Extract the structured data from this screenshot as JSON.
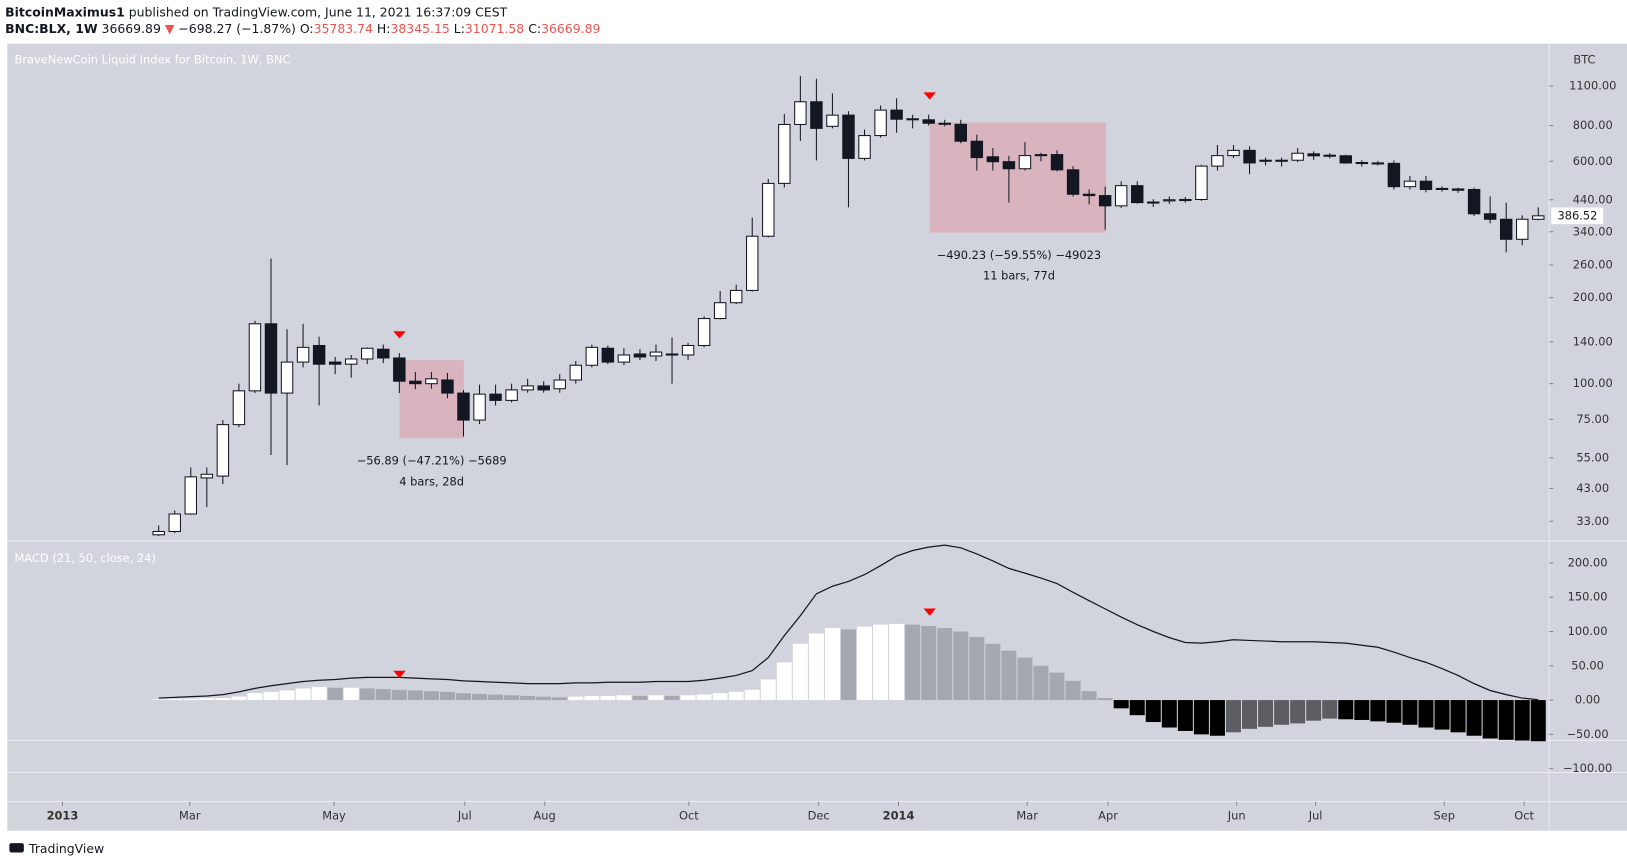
{
  "header": {
    "publisher": "BitcoinMaximus1",
    "published": "published on TradingView.com, June 11, 2021 16:37:09 CEST",
    "symbol": "BNC:BLX, 1W",
    "last": "36669.89",
    "arrow": "▼",
    "change": "−698.27 (−1.87%)",
    "ohlc": [
      {
        "label": "O:",
        "value": "35783.74"
      },
      {
        "label": "H:",
        "value": "38345.15"
      },
      {
        "label": "L:",
        "value": "31071.58"
      },
      {
        "label": "C:",
        "value": "36669.89"
      }
    ]
  },
  "footer": {
    "brand": "TradingView"
  },
  "chart_data": [
    {
      "type": "candlestick",
      "title": "BraveNewCoin Liquid Index for Bitcoin, 1W, BNC",
      "unit": "BTC",
      "categories": [
        null,
        null,
        null,
        null,
        null,
        null,
        null,
        null,
        null,
        null,
        null,
        null,
        null,
        null,
        null,
        null,
        null,
        null,
        null,
        null,
        null,
        null,
        null,
        null,
        null,
        null,
        null,
        null,
        null,
        null,
        null,
        null,
        null,
        null,
        null,
        null,
        null,
        null,
        null,
        null,
        null,
        null,
        null,
        null,
        null,
        null,
        null,
        null,
        null,
        null,
        null,
        null,
        null,
        null,
        null,
        null,
        null,
        null,
        null,
        null,
        null,
        null,
        null,
        null,
        null,
        null,
        null,
        null,
        null,
        null,
        null,
        null,
        null,
        null,
        null,
        null,
        null,
        null,
        null,
        null,
        null,
        null,
        null,
        null,
        null,
        null,
        null
      ],
      "open": [
        29.6,
        30.4,
        35.0,
        46.8,
        47.5,
        71.9,
        94.4,
        162,
        92.7,
        119,
        136,
        119,
        117,
        122,
        132,
        123,
        102,
        100,
        103,
        92.7,
        74.6,
        91.9,
        87.4,
        95.1,
        98.2,
        96.0,
        103,
        116,
        133,
        119,
        127,
        125,
        127,
        126,
        136,
        169,
        192,
        212,
        328,
        502,
        807,
        969,
        795,
        870,
        614,
        738,
        906,
        845,
        838,
        815,
        808,
        705,
        622,
        598,
        565,
        628,
        633,
        560,
        460,
        455,
        419,
        493,
        430,
        436,
        438,
        441,
        577,
        628,
        655,
        602,
        600,
        605,
        637,
        628,
        627,
        594,
        592,
        590,
        489,
        511,
        480,
        480,
        478,
        393,
        376,
        320,
        376
      ],
      "high": [
        31.9,
        36.0,
        50.9,
        50.9,
        74.6,
        100,
        166,
        274,
        155,
        162,
        146,
        124,
        126,
        134,
        137,
        128,
        110,
        110,
        109,
        95.0,
        99.2,
        99.2,
        100,
        104,
        102,
        108,
        120,
        137,
        136,
        133,
        132,
        137,
        145,
        139,
        172,
        211,
        222,
        381,
        520,
        878,
        1194,
        1167,
        1037,
        898,
        775,
        940,
        996,
        873,
        873,
        838,
        838,
        744,
        667,
        627,
        700,
        642,
        655,
        577,
        478,
        489,
        511,
        511,
        442,
        452,
        450,
        583,
        684,
        684,
        677,
        618,
        618,
        667,
        650,
        640,
        633,
        605,
        602,
        604,
        533,
        533,
        490,
        485,
        485,
        452,
        430,
        388,
        414
      ],
      "low": [
        29.3,
        30.0,
        34.8,
        37.0,
        44.5,
        70.4,
        92.7,
        56.3,
        51.9,
        114,
        83.9,
        108,
        105,
        117,
        118,
        92.7,
        95.7,
        96,
        88.9,
        65.3,
        72.2,
        83.9,
        86.0,
        93.0,
        93.0,
        93.0,
        100,
        114,
        117,
        116,
        121,
        120,
        100,
        121,
        134,
        168,
        190,
        210,
        325,
        486,
        707,
        604,
        782,
        414,
        604,
        726,
        755,
        782,
        800,
        795,
        694,
        557,
        557,
        430,
        557,
        600,
        553,
        452,
        424,
        346,
        412,
        427,
        415,
        425,
        430,
        436,
        557,
        616,
        541,
        580,
        575,
        596,
        607,
        615,
        588,
        575,
        580,
        478,
        478,
        467,
        470,
        465,
        386,
        364,
        288,
        305,
        373
      ],
      "close": [
        30.4,
        35.0,
        47.2,
        48.2,
        71.9,
        94.4,
        162,
        92.7,
        119,
        134,
        117,
        117,
        122,
        133,
        123,
        102,
        100,
        104,
        92.7,
        74.6,
        91.9,
        87.4,
        95.1,
        98.2,
        95.1,
        103,
        116,
        134,
        119,
        126,
        124,
        129,
        126,
        136,
        169,
        192,
        212,
        328,
        502,
        807,
        969,
        782,
        870,
        614,
        738,
        906,
        842,
        838,
        815,
        808,
        705,
        618,
        598,
        565,
        628,
        633,
        560,
        460,
        455,
        419,
        493,
        430,
        432,
        440,
        441,
        577,
        628,
        655,
        592,
        605,
        605,
        640,
        627,
        630,
        592,
        590,
        590,
        489,
        511,
        478,
        482,
        475,
        393,
        376,
        320,
        376,
        386.52
      ],
      "up_color": "#ffffff",
      "down_color": "#131722",
      "log_scale": true,
      "ylim": [
        28.4,
        1548
      ],
      "yticks": [
        {
          "value": 1100,
          "label": "1100.00"
        },
        {
          "value": 800,
          "label": "800.00"
        },
        {
          "value": 600,
          "label": "600.00"
        },
        {
          "value": 440,
          "label": "440.00"
        },
        {
          "value": 340,
          "label": "340.00"
        },
        {
          "value": 260,
          "label": "260.00"
        },
        {
          "value": 200,
          "label": "200.00"
        },
        {
          "value": 140,
          "label": "140.00"
        },
        {
          "value": 100,
          "label": "100.00"
        },
        {
          "value": 75,
          "label": "75.00"
        },
        {
          "value": 55,
          "label": "55.00"
        },
        {
          "value": 43,
          "label": "43.00"
        },
        {
          "value": 33,
          "label": "33.00"
        }
      ],
      "xlim": [
        -9.44,
        86.68
      ],
      "xticks": [
        {
          "value": -6.0,
          "label": "2013"
        },
        {
          "value": 1.94,
          "label": "Mar"
        },
        {
          "value": 10.93,
          "label": "May"
        },
        {
          "value": 19.08,
          "label": "Jul"
        },
        {
          "value": 24.06,
          "label": "Aug"
        },
        {
          "value": 33.05,
          "label": "Oct"
        },
        {
          "value": 41.14,
          "label": "Dec"
        },
        {
          "value": 46.12,
          "label": "2014"
        },
        {
          "value": 54.14,
          "label": "Mar"
        },
        {
          "value": 59.18,
          "label": "Apr"
        },
        {
          "value": 67.2,
          "label": "Jun"
        },
        {
          "value": 72.12,
          "label": "Jul"
        },
        {
          "value": 80.14,
          "label": "Sep"
        },
        {
          "value": 85.12,
          "label": "Oct"
        }
      ],
      "annotations": [
        "−56.89 (−47.21%) −5689",
        "4 bars, 28d",
        "−490.23 (−59.55%) −49023",
        "11 bars, 77d"
      ]
    },
    {
      "type": "macd",
      "title": "MACD (21, 50, close, 24)",
      "categories": [
        null,
        null,
        null,
        null,
        null,
        null,
        null,
        null,
        null,
        null,
        null,
        null,
        null,
        null,
        null,
        null,
        null,
        null,
        null,
        null,
        null,
        null,
        null,
        null,
        null,
        null,
        null,
        null,
        null,
        null,
        null,
        null,
        null,
        null,
        null,
        null,
        null,
        null,
        null,
        null,
        null,
        null,
        null,
        null,
        null,
        null,
        null,
        null,
        null,
        null,
        null,
        null,
        null,
        null,
        null,
        null,
        null,
        null,
        null,
        null,
        null,
        null,
        null,
        null,
        null,
        null,
        null,
        null,
        null,
        null,
        null,
        null,
        null,
        null,
        null,
        null,
        null,
        null,
        null,
        null,
        null,
        null,
        null,
        null,
        null,
        null,
        null
      ],
      "series": [
        {
          "color": "#131722",
          "values": [
            3,
            4,
            5,
            6,
            8,
            12,
            17,
            21,
            24,
            27,
            29,
            30,
            32,
            33,
            33,
            33,
            32,
            31,
            30,
            28,
            27,
            26,
            25,
            24,
            24,
            24,
            25,
            25,
            26,
            26,
            26,
            27,
            27,
            27,
            29,
            32,
            36,
            43,
            62,
            94,
            123,
            155,
            166,
            173,
            183,
            196,
            210,
            218,
            223,
            226,
            222,
            213,
            203,
            192,
            185,
            178,
            170,
            157,
            145,
            133,
            121,
            110,
            100,
            91,
            84,
            83,
            85,
            88,
            87,
            86,
            85,
            85,
            85,
            84,
            83,
            80,
            77,
            70,
            62,
            55,
            46,
            36,
            24,
            14,
            8,
            3,
            0.5
          ]
        }
      ],
      "histogram": {
        "values": [
          1,
          2,
          2,
          3,
          3,
          5,
          10,
          12,
          14,
          17,
          19,
          18,
          18,
          17,
          16,
          15,
          14,
          13,
          12,
          10,
          9,
          8,
          7,
          6,
          5,
          4,
          5,
          6,
          6,
          7,
          6,
          7,
          6,
          7,
          8,
          10,
          12,
          15,
          30,
          55,
          82,
          97,
          105,
          103,
          107,
          110,
          111,
          110,
          108,
          105,
          100,
          92,
          82,
          72,
          62,
          50,
          40,
          28,
          13,
          3,
          -12,
          -22,
          -32,
          -40,
          -45,
          -50,
          -52,
          -47,
          -42,
          -39,
          -36,
          -34,
          -30,
          -27,
          -28,
          -29,
          -31,
          -33,
          -36,
          -40,
          -43,
          -47,
          -52,
          -56,
          -58,
          -59,
          -60
        ],
        "colors": {
          "pos_up": "#ffffff",
          "pos_down": "#a6a8b0",
          "neg_down": "#000000",
          "neg_up": "#5d5e63"
        }
      },
      "ylim": [
        -148,
        232
      ],
      "yticks": [
        {
          "value": 200,
          "label": "200.00"
        },
        {
          "value": 150,
          "label": "150.00"
        },
        {
          "value": 100,
          "label": "100.00"
        },
        {
          "value": 50,
          "label": "50.00"
        },
        {
          "value": 0,
          "label": "0.00"
        },
        {
          "value": -50,
          "label": "−50.00"
        },
        {
          "value": -100,
          "label": "−100.00"
        }
      ]
    }
  ]
}
